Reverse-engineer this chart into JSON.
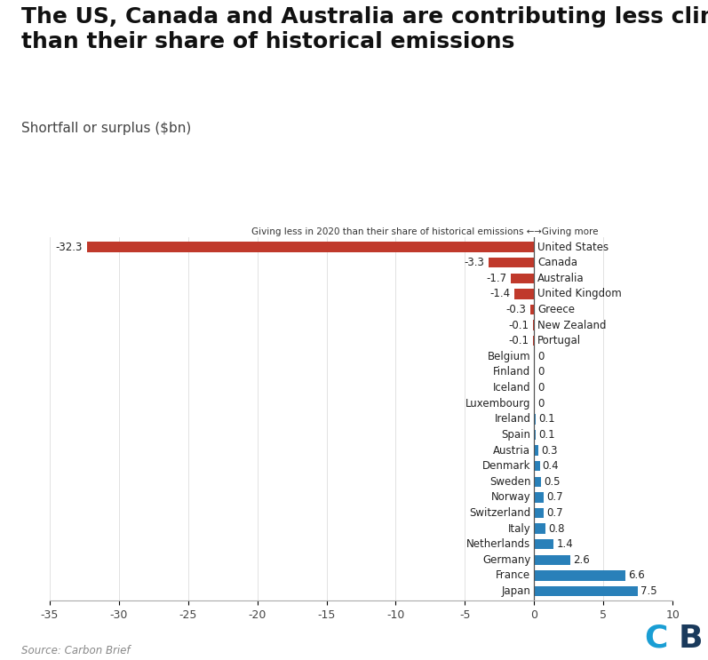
{
  "title": "The US, Canada and Australia are contributing less climate finance\nthan their share of historical emissions",
  "subtitle": "Shortfall or surplus ($bn)",
  "annotation_left": "Giving less in 2020 than their share of historical emissions ←",
  "annotation_right": "→Giving more",
  "source": "Source: Carbon Brief",
  "countries": [
    "United States",
    "Canada",
    "Australia",
    "United Kingdom",
    "Greece",
    "New Zealand",
    "Portugal",
    "Belgium",
    "Finland",
    "Iceland",
    "Luxembourg",
    "Ireland",
    "Spain",
    "Austria",
    "Denmark",
    "Sweden",
    "Norway",
    "Switzerland",
    "Italy",
    "Netherlands",
    "Germany",
    "France",
    "Japan"
  ],
  "values": [
    -32.3,
    -3.3,
    -1.7,
    -1.4,
    -0.3,
    -0.1,
    -0.1,
    0,
    0,
    0,
    0,
    0.1,
    0.1,
    0.3,
    0.4,
    0.5,
    0.7,
    0.7,
    0.8,
    1.4,
    2.6,
    6.6,
    7.5
  ],
  "value_labels": [
    "-32.3",
    "-3.3",
    "-1.7",
    "-1.4",
    "-0.3",
    "-0.1",
    "-0.1",
    "0",
    "0",
    "0",
    "0",
    "0.1",
    "0.1",
    "0.3",
    "0.4",
    "0.5",
    "0.7",
    "0.7",
    "0.8",
    "1.4",
    "2.6",
    "6.6",
    "7.5"
  ],
  "bar_colors": [
    "#c0392b",
    "#c0392b",
    "#c0392b",
    "#c0392b",
    "#c0392b",
    "#c0392b",
    "#c0392b",
    "#c0392b",
    "#c0392b",
    "#c0392b",
    "#c0392b",
    "#2980b9",
    "#2980b9",
    "#2980b9",
    "#2980b9",
    "#2980b9",
    "#2980b9",
    "#2980b9",
    "#2980b9",
    "#2980b9",
    "#2980b9",
    "#2980b9",
    "#2980b9"
  ],
  "xlim": [
    -35,
    10
  ],
  "xticks": [
    -35,
    -30,
    -25,
    -20,
    -15,
    -10,
    -5,
    0,
    5,
    10
  ],
  "background_color": "#ffffff",
  "title_fontsize": 18,
  "subtitle_fontsize": 11,
  "cb_color_c": "#1a9ed4",
  "cb_color_b": "#1a3a5c",
  "bar_height": 0.65,
  "text_fontsize": 8.5
}
